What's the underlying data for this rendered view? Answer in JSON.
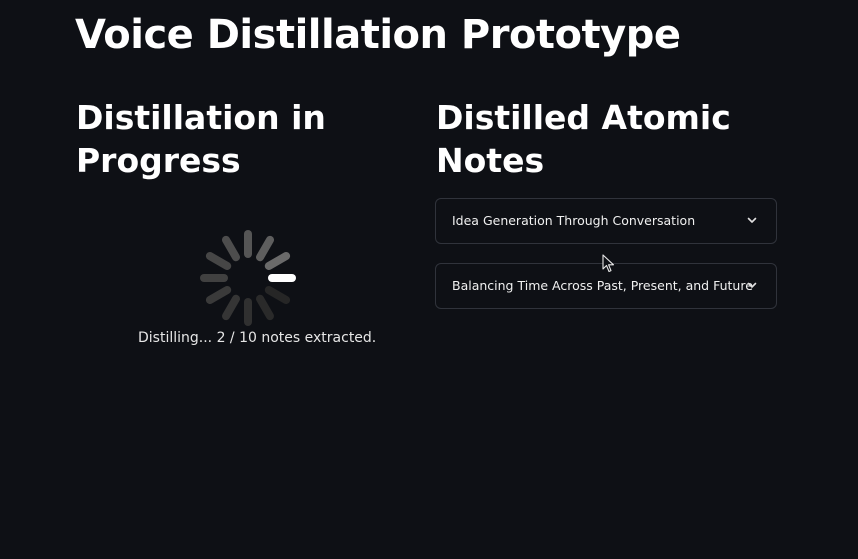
{
  "app": {
    "title": "Voice Distillation Prototype"
  },
  "left_column": {
    "heading": "Distillation in Progress",
    "status_text": "Distilling... 2 / 10 notes extracted."
  },
  "right_column": {
    "heading": "Distilled Atomic Notes",
    "notes": [
      {
        "label": "Idea Generation Through Conversation",
        "icon": "chevron-down-icon"
      },
      {
        "label": "Balancing Time Across Past, Present, and Future",
        "icon": "chevron-down-icon"
      }
    ]
  },
  "colors": {
    "background": "#0e1015",
    "text": "#fafafa",
    "border": "#30333b"
  }
}
